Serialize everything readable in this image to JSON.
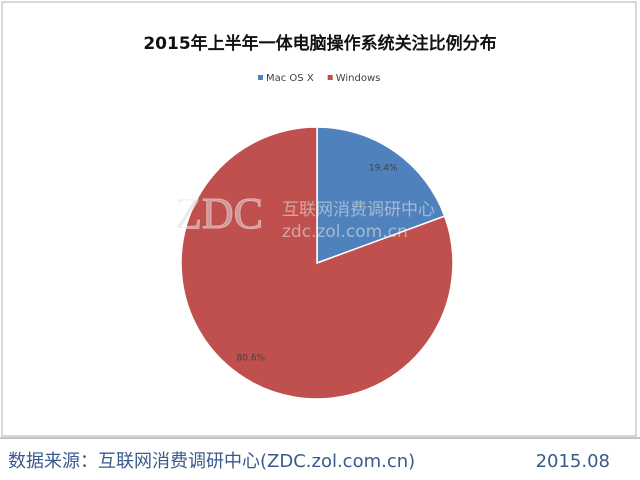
{
  "chart_data": {
    "type": "pie",
    "title": "2015年上半年一体电脑操作系统关注比例分布",
    "categories": [
      "Mac OS X",
      "Windows"
    ],
    "values": [
      19.4,
      80.6
    ],
    "value_labels": [
      "19.4%",
      "80.6%"
    ],
    "colors": [
      "#4f81bd",
      "#c0504d"
    ],
    "legend": "top",
    "start_angle": 0,
    "direction": "clockwise"
  },
  "watermark": {
    "logo": "ZDC",
    "name": "互联网消费调研中心",
    "url": "zdc.zol.com.cn"
  },
  "footer": {
    "source": "数据来源：互联网消费调研中心(ZDC.zol.com.cn)",
    "date": "2015.08"
  }
}
